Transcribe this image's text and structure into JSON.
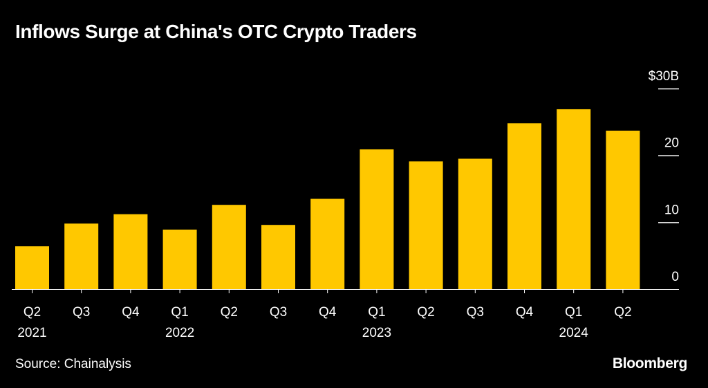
{
  "title": "Inflows Surge at China's OTC Crypto Traders",
  "source": "Source: Chainalysis",
  "brand": "Bloomberg",
  "colors": {
    "background": "#000000",
    "bar": "#FFC800",
    "text": "#FFFFFF"
  },
  "chart_data": {
    "type": "bar",
    "title": "Inflows Surge at China's OTC Crypto Traders",
    "categories": [
      "Q2",
      "Q3",
      "Q4",
      "Q1",
      "Q2",
      "Q3",
      "Q4",
      "Q1",
      "Q2",
      "Q3",
      "Q4",
      "Q1",
      "Q2"
    ],
    "year_labels": [
      {
        "index": 0,
        "label": "2021"
      },
      {
        "index": 3,
        "label": "2022"
      },
      {
        "index": 7,
        "label": "2023"
      },
      {
        "index": 11,
        "label": "2024"
      }
    ],
    "values": [
      6.4,
      9.8,
      11.2,
      8.9,
      12.6,
      9.6,
      13.5,
      20.9,
      19.1,
      19.5,
      24.8,
      26.9,
      23.7
    ],
    "ylim": [
      0,
      30
    ],
    "yticks": [
      0,
      10,
      20,
      30
    ],
    "ytick_labels": [
      "0",
      "10",
      "20",
      "$30B"
    ],
    "xlabel": "",
    "ylabel": "",
    "y_axis_side": "right",
    "grid": false,
    "legend": "none"
  }
}
